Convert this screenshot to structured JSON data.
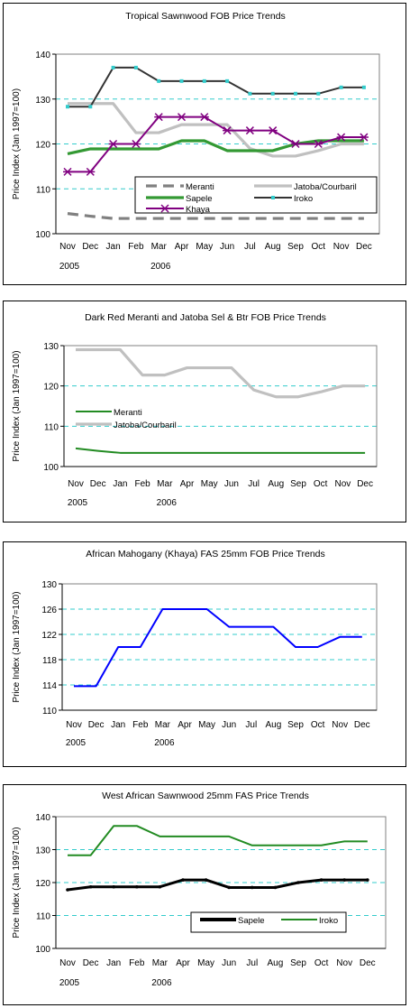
{
  "chart_data": [
    {
      "type": "line",
      "title": "Tropical Sawnwood FOB Price Trends",
      "ylabel": "Price Index (Jan 1997=100)",
      "categories": [
        "Nov",
        "Dec",
        "Jan",
        "Feb",
        "Mar",
        "Apr",
        "May",
        "Jun",
        "Jul",
        "Aug",
        "Sep",
        "Oct",
        "Nov",
        "Dec"
      ],
      "year_labels": [
        {
          "label": "2005",
          "index": 0
        },
        {
          "label": "2006",
          "index": 4
        }
      ],
      "ylim": [
        100,
        140
      ],
      "yticks": [
        "100",
        "110",
        "120",
        "130",
        "140"
      ],
      "grid": true,
      "legend_position": "bottom-center",
      "series": [
        {
          "name": "Meranti",
          "color": "#808080",
          "style": "dashed",
          "values": [
            104.5,
            103.9,
            103.4,
            103.4,
            103.4,
            103.4,
            103.4,
            103.4,
            103.4,
            103.4,
            103.4,
            103.4,
            103.4,
            103.4
          ]
        },
        {
          "name": "Jatoba/Courbaril",
          "color": "#c0c0c0",
          "style": "solid",
          "values": [
            129,
            129,
            129,
            122.5,
            122.5,
            124.3,
            124.3,
            124.3,
            119,
            117.3,
            117.3,
            118.5,
            120,
            120
          ]
        },
        {
          "name": "Sapele",
          "color": "#339933",
          "style": "solid",
          "values": [
            117.8,
            118.9,
            118.9,
            118.9,
            118.9,
            120.7,
            120.7,
            118.5,
            118.5,
            118.5,
            120,
            120.7,
            120.7,
            120.7
          ]
        },
        {
          "name": "Iroko",
          "color": "#333333",
          "style": "solid",
          "marker": "square",
          "values": [
            128.3,
            128.3,
            137,
            137,
            134,
            134,
            134,
            134,
            131.2,
            131.2,
            131.2,
            131.2,
            132.6,
            132.6
          ]
        },
        {
          "name": "Khaya",
          "color": "#800080",
          "style": "solid",
          "marker": "star",
          "values": [
            113.8,
            113.8,
            120,
            120,
            126,
            126,
            126,
            123,
            123,
            123,
            120,
            120,
            121.5,
            121.5
          ]
        }
      ]
    },
    {
      "type": "line",
      "title": "Dark Red Meranti and Jatoba Sel & Btr FOB Price Trends",
      "ylabel": "Price Index (Jan 1997=100)",
      "categories": [
        "Nov",
        "Dec",
        "Jan",
        "Feb",
        "Mar",
        "Apr",
        "May",
        "Jun",
        "Jul",
        "Aug",
        "Sep",
        "Oct",
        "Nov",
        "Dec"
      ],
      "year_labels": [
        {
          "label": "2005",
          "index": 0
        },
        {
          "label": "2006",
          "index": 4
        }
      ],
      "ylim": [
        100,
        130
      ],
      "yticks": [
        "100",
        "110",
        "120",
        "130"
      ],
      "grid": true,
      "legend_position": "bottom-left",
      "series": [
        {
          "name": "Meranti",
          "color": "#228b22",
          "style": "solid",
          "values": [
            104.5,
            103.9,
            103.4,
            103.4,
            103.4,
            103.4,
            103.4,
            103.4,
            103.4,
            103.4,
            103.4,
            103.4,
            103.4,
            103.4
          ]
        },
        {
          "name": "Jatoba/Courbaril",
          "color": "#c0c0c0",
          "style": "solid",
          "values": [
            129,
            129,
            129,
            122.7,
            122.7,
            124.5,
            124.5,
            124.5,
            119,
            117.3,
            117.3,
            118.5,
            120,
            120
          ]
        }
      ]
    },
    {
      "type": "line",
      "title": "African Mahogany (Khaya) FAS 25mm FOB Price Trends",
      "ylabel": "Price Index (Jan 1997=100)",
      "categories": [
        "Nov",
        "Dec",
        "Jan",
        "Feb",
        "Mar",
        "Apr",
        "May",
        "Jun",
        "Jul",
        "Aug",
        "Sep",
        "Oct",
        "Nov",
        "Dec"
      ],
      "year_labels": [
        {
          "label": "2005",
          "index": 0
        },
        {
          "label": "2006",
          "index": 4
        }
      ],
      "ylim": [
        110,
        130
      ],
      "yticks": [
        "110",
        "114",
        "118",
        "122",
        "126",
        "130"
      ],
      "grid": true,
      "legend_position": "none",
      "series": [
        {
          "name": "",
          "color": "#0000ff",
          "style": "solid",
          "values": [
            113.8,
            113.8,
            120,
            120,
            126,
            126,
            126,
            123.2,
            123.2,
            123.2,
            120,
            120,
            121.6,
            121.6
          ]
        }
      ]
    },
    {
      "type": "line",
      "title": "West African Sawnwood 25mm FAS Price Trends",
      "ylabel": "Price Index (Jan 1997=100)",
      "categories": [
        "Nov",
        "Dec",
        "Jan",
        "Feb",
        "Mar",
        "Apr",
        "May",
        "Jun",
        "Jul",
        "Aug",
        "Sep",
        "Oct",
        "Nov",
        "Dec"
      ],
      "year_labels": [
        {
          "label": "2005",
          "index": 0
        },
        {
          "label": "2006",
          "index": 4
        }
      ],
      "ylim": [
        100,
        140
      ],
      "yticks": [
        "100",
        "110",
        "120",
        "130",
        "140"
      ],
      "grid": true,
      "legend_position": "bottom-center",
      "series": [
        {
          "name": "Sapele",
          "color": "#000000",
          "style": "solid",
          "marker": "dot",
          "values": [
            117.8,
            118.7,
            118.7,
            118.7,
            118.7,
            120.8,
            120.8,
            118.5,
            118.5,
            118.5,
            120,
            120.8,
            120.8,
            120.8
          ]
        },
        {
          "name": "Iroko",
          "color": "#228b22",
          "style": "solid",
          "values": [
            128.3,
            128.3,
            137.2,
            137.2,
            134,
            134,
            134,
            134,
            131.3,
            131.3,
            131.3,
            131.3,
            132.5,
            132.5
          ]
        }
      ]
    }
  ]
}
